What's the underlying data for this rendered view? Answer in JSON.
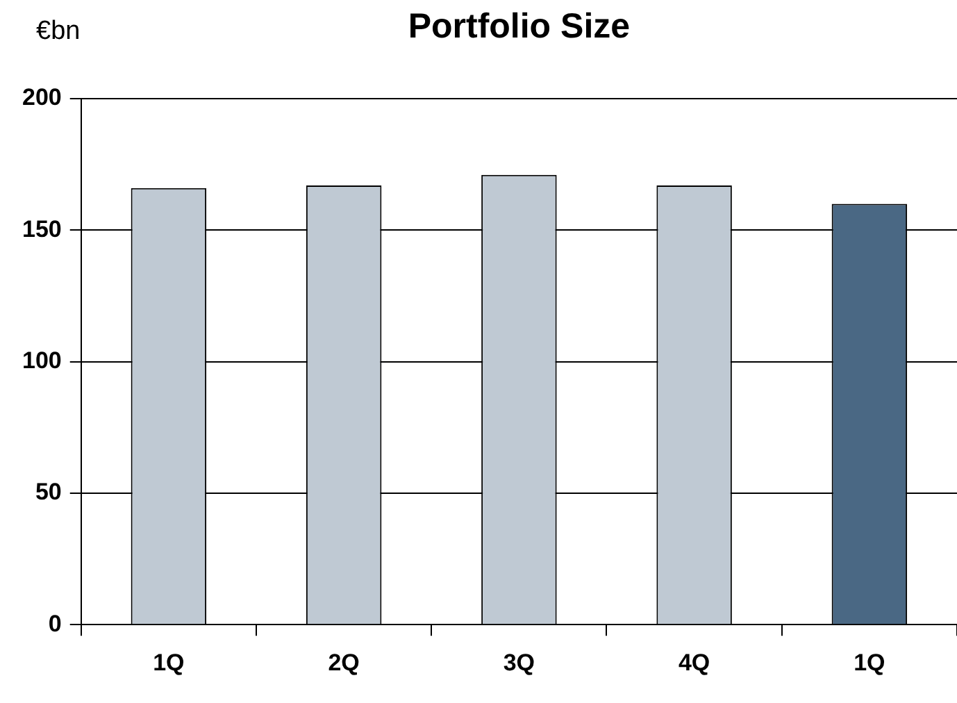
{
  "chart_data": {
    "type": "bar",
    "title": "Portfolio Size",
    "ylabel": "€bn",
    "categories": [
      "1Q",
      "2Q",
      "3Q",
      "4Q",
      "1Q"
    ],
    "values": [
      166,
      167,
      171,
      167,
      160
    ],
    "colors": [
      "#bfc9d3",
      "#bfc9d3",
      "#bfc9d3",
      "#bfc9d3",
      "#4a6884"
    ],
    "ylim": [
      0,
      200
    ],
    "yticks": [
      0,
      50,
      100,
      150,
      200
    ],
    "grid": "y"
  }
}
